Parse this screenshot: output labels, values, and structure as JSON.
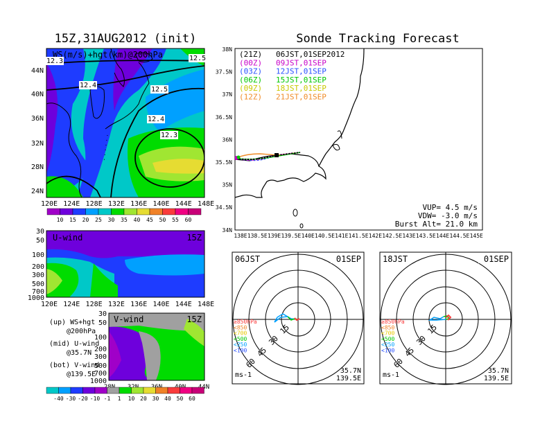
{
  "left_title": "15Z,31AUG2012 (init)",
  "right_title": "Sonde Tracking Forecast",
  "top_map": {
    "label": "WS(m/s)+hgt(km)@200hPa",
    "lat_ticks": [
      "44N",
      "40N",
      "36N",
      "32N",
      "28N",
      "24N"
    ],
    "lon_ticks": [
      "120E",
      "124E",
      "128E",
      "132E",
      "136E",
      "140E",
      "144E",
      "148E"
    ],
    "contour_labels": [
      "12.3",
      "12.5",
      "12.4",
      "12.5",
      "12.4",
      "12.3"
    ],
    "colorbar_ticks": [
      "10",
      "15",
      "20",
      "25",
      "30",
      "35",
      "40",
      "45",
      "50",
      "55",
      "60"
    ],
    "colorbar_colors": [
      "#a000c8",
      "#6e00dc",
      "#1e3cff",
      "#00a0ff",
      "#00c8c8",
      "#00dc00",
      "#a0e632",
      "#e6dc32",
      "#f08228",
      "#fa3c3c",
      "#f00082",
      "#c80078"
    ]
  },
  "u_panel": {
    "label": "U-wind",
    "time": "15Z",
    "y_ticks": [
      "30",
      "50",
      "100",
      "200",
      "300",
      "500",
      "700",
      "1000"
    ],
    "x_ticks": [
      "120E",
      "124E",
      "128E",
      "132E",
      "136E",
      "140E",
      "144E",
      "148E"
    ]
  },
  "v_panel": {
    "label": "V-wind",
    "time": "15Z",
    "y_ticks": [
      "30",
      "50",
      "100",
      "200",
      "300",
      "500",
      "700",
      "1000"
    ],
    "x_ticks": [
      "28N",
      "32N",
      "36N",
      "40N",
      "44N"
    ]
  },
  "legend": [
    {
      "a": "(up) WS+hgt",
      "b": "@200hPa"
    },
    {
      "a": "(mid) U-wind",
      "b": "@35.7N"
    },
    {
      "a": "(bot) V-wind",
      "b": "@139.5E"
    }
  ],
  "bottom_colorbar_ticks": [
    "-40",
    "-30",
    "-20",
    "-10",
    "-1",
    "1",
    "10",
    "20",
    "30",
    "40",
    "50",
    "60"
  ],
  "bottom_colorbar_colors": [
    "#00c8c8",
    "#00a0ff",
    "#1e3cff",
    "#6e00dc",
    "#a000c8",
    "#a0a0a0",
    "#00dc00",
    "#a0e632",
    "#e6dc32",
    "#f08228",
    "#fa3c3c",
    "#f00082",
    "#c80078"
  ],
  "track_map": {
    "lat_ticks": [
      "38N",
      "37.5N",
      "37N",
      "36.5N",
      "36N",
      "35.5N",
      "35N",
      "34.5N",
      "34N"
    ],
    "lon_ticks": [
      "138E",
      "138.5E",
      "139E",
      "139.5E",
      "140E",
      "140.5E",
      "141E",
      "141.5E",
      "142E",
      "142.5E",
      "143E",
      "143.5E",
      "144E",
      "144.5E",
      "145E"
    ],
    "times": [
      {
        "z": "(21Z)",
        "jst": "06JST,01SEP2012",
        "color": "#000000"
      },
      {
        "z": "(00Z)",
        "jst": "09JST,01SEP",
        "color": "#c800c8"
      },
      {
        "z": "(03Z)",
        "jst": "12JST,01SEP",
        "color": "#2850ff"
      },
      {
        "z": "(06Z)",
        "jst": "15JST,01SEP",
        "color": "#00c800"
      },
      {
        "z": "(09Z)",
        "jst": "18JST,01SEP",
        "color": "#c8c800"
      },
      {
        "z": "(12Z)",
        "jst": "21JST,01SEP",
        "color": "#f08c28"
      }
    ],
    "vup": "VUP= 4.5 m/s",
    "vdw": "VDW= -3.0 m/s",
    "burst": "Burst Alt= 21.0 km"
  },
  "hodo_left": {
    "time": "06JST",
    "date": "01SEP",
    "lat": "35.7N",
    "lon": "139.5E",
    "unit": "ms-1",
    "rings": [
      "15",
      "30",
      "45",
      "60"
    ],
    "levels": [
      {
        "t": "≥850hPa",
        "c": "#fa3c3c"
      },
      {
        "t": "<850",
        "c": "#f08228"
      },
      {
        "t": "<700",
        "c": "#e6c800"
      },
      {
        "t": "<500",
        "c": "#00c800"
      },
      {
        "t": "<250",
        "c": "#00a0ff"
      },
      {
        "t": "<100",
        "c": "#2850ff"
      }
    ]
  },
  "hodo_right": {
    "time": "18JST",
    "date": "01SEP",
    "lat": "35.7N",
    "lon": "139.5E",
    "unit": "ms-1",
    "rings": [
      "15",
      "30",
      "45",
      "60"
    ],
    "levels": [
      {
        "t": "≥850hPa",
        "c": "#fa3c3c"
      },
      {
        "t": "<850",
        "c": "#f08228"
      },
      {
        "t": "<700",
        "c": "#e6c800"
      },
      {
        "t": "<500",
        "c": "#00c800"
      },
      {
        "t": "<250",
        "c": "#00a0ff"
      },
      {
        "t": "<100",
        "c": "#2850ff"
      }
    ]
  }
}
